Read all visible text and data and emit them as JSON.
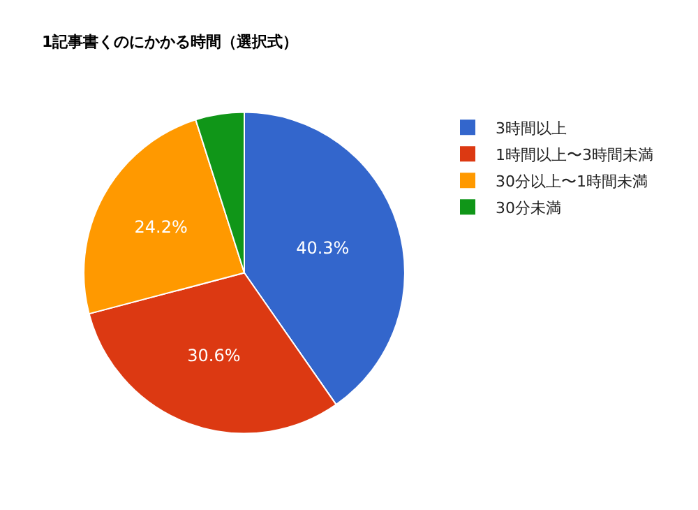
{
  "chart_data": {
    "type": "pie",
    "title": "1記事書くのにかかる時間（選択式）",
    "categories": [
      "3時間以上",
      "1時間以上〜3時間未満",
      "30分以上〜1時間未満",
      "30分未満"
    ],
    "values": [
      40.3,
      30.6,
      24.2,
      4.9
    ],
    "value_labels": [
      "40.3%",
      "30.6%",
      "24.2%",
      null
    ],
    "colors": [
      "#3366cc",
      "#dc3912",
      "#ff9900",
      "#109618"
    ],
    "legend": "top right"
  }
}
